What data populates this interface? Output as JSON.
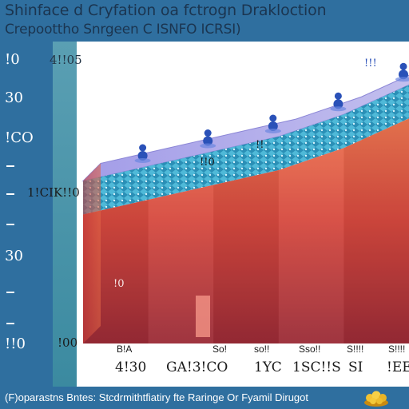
{
  "title": {
    "line1": "Shinface d Cryfation oa fctrogn Drakloction",
    "line2": "Crepoottho Snrgeen C ISNFO ICRSI)"
  },
  "chart_data": {
    "type": "area",
    "title": "Shinface d Cryfation oa fctrogn Drakloction",
    "subtitle": "Crepoottho Snrgeen C ISNFO ICRSI)",
    "ylabel": "",
    "xlabel": "",
    "y_tick_labels": [
      "!0",
      "30",
      "!CO",
      "30",
      "!!0"
    ],
    "inner_axis_labels": [
      "4!!05",
      "1!CIK!!0",
      "!00"
    ],
    "x_tick_labels": [
      "4!30",
      "GA!3!CO",
      "1YC",
      "1SC!!S",
      "SI",
      "!EE"
    ],
    "x_sub_labels": [
      "B!A",
      "",
      "So!",
      "so!!",
      "Sso!!",
      "S!!!!",
      "S!!!!"
    ],
    "annotations": [
      "!0",
      "!!0",
      "!!",
      "!!!"
    ],
    "series": [
      {
        "values": [
          2.2,
          2.4,
          2.6,
          2.8,
          3.1,
          3.5
        ]
      }
    ],
    "ylim": [
      0,
      4
    ],
    "grid": true,
    "legend": "none"
  },
  "footer": {
    "text": "(F)oparastns Bntes: Stcdrmithtfiatiry fte Raringe Or Fyamil Dirugot"
  },
  "colors": {
    "background": "#2f6f9f",
    "panel": "#ffffff",
    "top_face": "#a9a4e6",
    "cyan_band": "#3fb6d6",
    "front_top": "#e96a4b",
    "front_bottom": "#9d2d35",
    "marker": "#2a51b8"
  },
  "icons": [
    "people-marker-icon",
    "coin-pile-icon"
  ]
}
